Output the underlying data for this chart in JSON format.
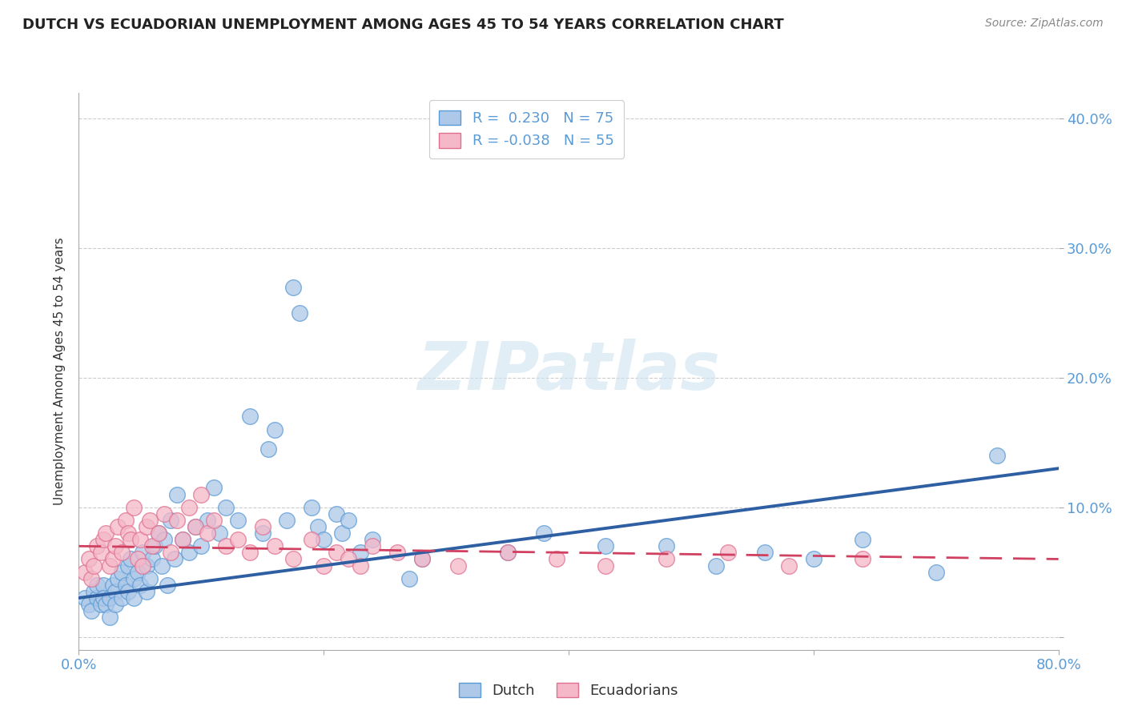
{
  "title": "DUTCH VS ECUADORIAN UNEMPLOYMENT AMONG AGES 45 TO 54 YEARS CORRELATION CHART",
  "source": "Source: ZipAtlas.com",
  "ylabel": "Unemployment Among Ages 45 to 54 years",
  "xlim": [
    0.0,
    0.8
  ],
  "ylim": [
    -0.01,
    0.42
  ],
  "yticks": [
    0.0,
    0.1,
    0.2,
    0.3,
    0.4
  ],
  "ytick_labels": [
    "",
    "10.0%",
    "20.0%",
    "30.0%",
    "40.0%"
  ],
  "xticks": [
    0.0,
    0.2,
    0.4,
    0.6,
    0.8
  ],
  "dutch_color": "#adc8e8",
  "dutch_edge_color": "#5b9bd5",
  "ecuadorian_color": "#f4b8c8",
  "ecuadorian_edge_color": "#e07090",
  "dutch_R": 0.23,
  "dutch_N": 75,
  "ecuadorian_R": -0.038,
  "ecuadorian_N": 55,
  "dutch_line_color": "#2e5fa3",
  "ecuadorian_line_color": "#d04060",
  "watermark": "ZIPatlas",
  "legend_dutch": "Dutch",
  "legend_ecuadorians": "Ecuadorians",
  "dutch_x": [
    0.005,
    0.008,
    0.01,
    0.012,
    0.015,
    0.015,
    0.018,
    0.02,
    0.02,
    0.022,
    0.025,
    0.025,
    0.028,
    0.03,
    0.03,
    0.032,
    0.035,
    0.035,
    0.038,
    0.04,
    0.04,
    0.042,
    0.045,
    0.045,
    0.048,
    0.05,
    0.052,
    0.055,
    0.055,
    0.058,
    0.06,
    0.062,
    0.065,
    0.068,
    0.07,
    0.072,
    0.075,
    0.078,
    0.08,
    0.085,
    0.09,
    0.095,
    0.1,
    0.105,
    0.11,
    0.115,
    0.12,
    0.13,
    0.14,
    0.15,
    0.155,
    0.16,
    0.17,
    0.175,
    0.18,
    0.19,
    0.195,
    0.2,
    0.21,
    0.215,
    0.22,
    0.23,
    0.24,
    0.27,
    0.28,
    0.35,
    0.38,
    0.43,
    0.48,
    0.52,
    0.56,
    0.6,
    0.64,
    0.7,
    0.75
  ],
  "dutch_y": [
    0.03,
    0.025,
    0.02,
    0.035,
    0.03,
    0.04,
    0.025,
    0.04,
    0.03,
    0.025,
    0.03,
    0.015,
    0.04,
    0.035,
    0.025,
    0.045,
    0.03,
    0.05,
    0.04,
    0.055,
    0.035,
    0.06,
    0.045,
    0.03,
    0.05,
    0.04,
    0.065,
    0.035,
    0.055,
    0.045,
    0.06,
    0.07,
    0.08,
    0.055,
    0.075,
    0.04,
    0.09,
    0.06,
    0.11,
    0.075,
    0.065,
    0.085,
    0.07,
    0.09,
    0.115,
    0.08,
    0.1,
    0.09,
    0.17,
    0.08,
    0.145,
    0.16,
    0.09,
    0.27,
    0.25,
    0.1,
    0.085,
    0.075,
    0.095,
    0.08,
    0.09,
    0.065,
    0.075,
    0.045,
    0.06,
    0.065,
    0.08,
    0.07,
    0.07,
    0.055,
    0.065,
    0.06,
    0.075,
    0.05,
    0.14
  ],
  "ecuadorian_x": [
    0.005,
    0.008,
    0.01,
    0.012,
    0.015,
    0.018,
    0.02,
    0.022,
    0.025,
    0.028,
    0.03,
    0.032,
    0.035,
    0.038,
    0.04,
    0.042,
    0.045,
    0.048,
    0.05,
    0.052,
    0.055,
    0.058,
    0.06,
    0.065,
    0.07,
    0.075,
    0.08,
    0.085,
    0.09,
    0.095,
    0.1,
    0.105,
    0.11,
    0.12,
    0.13,
    0.14,
    0.15,
    0.16,
    0.175,
    0.19,
    0.2,
    0.21,
    0.22,
    0.23,
    0.24,
    0.26,
    0.28,
    0.31,
    0.35,
    0.39,
    0.43,
    0.48,
    0.53,
    0.58,
    0.64
  ],
  "ecuadorian_y": [
    0.05,
    0.06,
    0.045,
    0.055,
    0.07,
    0.065,
    0.075,
    0.08,
    0.055,
    0.06,
    0.07,
    0.085,
    0.065,
    0.09,
    0.08,
    0.075,
    0.1,
    0.06,
    0.075,
    0.055,
    0.085,
    0.09,
    0.07,
    0.08,
    0.095,
    0.065,
    0.09,
    0.075,
    0.1,
    0.085,
    0.11,
    0.08,
    0.09,
    0.07,
    0.075,
    0.065,
    0.085,
    0.07,
    0.06,
    0.075,
    0.055,
    0.065,
    0.06,
    0.055,
    0.07,
    0.065,
    0.06,
    0.055,
    0.065,
    0.06,
    0.055,
    0.06,
    0.065,
    0.055,
    0.06
  ],
  "dutch_line_start_y": 0.03,
  "dutch_line_end_y": 0.13,
  "ecuadorian_line_start_y": 0.07,
  "ecuadorian_line_end_y": 0.06
}
